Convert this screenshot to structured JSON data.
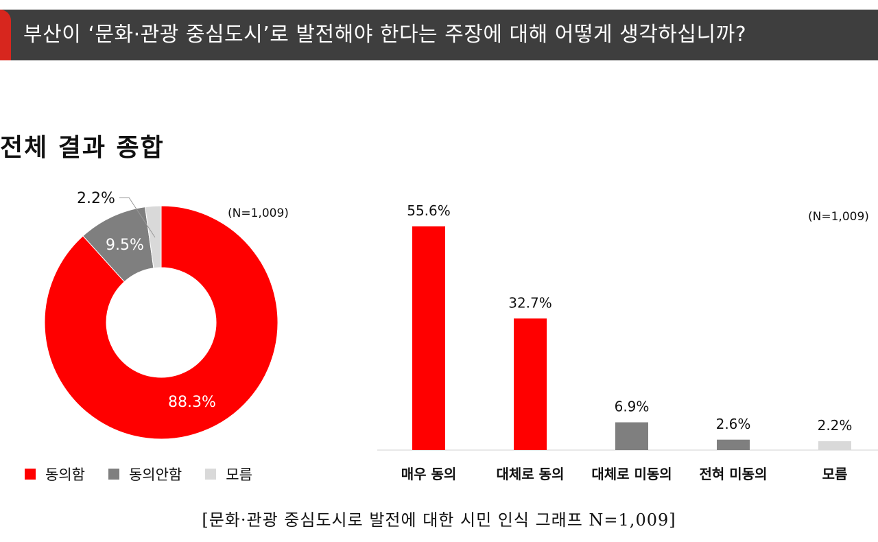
{
  "header": {
    "title": "부산이 ‘문화·관광 중심도시’로 발전해야 한다는 주장에 대해 어떻게 생각하십니까?"
  },
  "section_title": "전체 결과 종합",
  "caption": "[문화·관광 중심도시로 발전에 대한 시민 인식 그래프 N=1,009]",
  "colors": {
    "red": "#ff0000",
    "gray": "#7f7f7f",
    "lightgray": "#d9d9d9",
    "header_bg": "#3e3e3e",
    "accent": "#d7261e"
  },
  "chart_data": [
    {
      "type": "pie",
      "n_label": "(N=1,009)",
      "categories": [
        "동의함",
        "동의안함",
        "모름"
      ],
      "values": [
        88.3,
        9.5,
        2.2
      ],
      "labels": [
        "88.3%",
        "9.5%",
        "2.2%"
      ],
      "colors": [
        "#ff0000",
        "#7f7f7f",
        "#d9d9d9"
      ],
      "legend_position": "bottom"
    },
    {
      "type": "bar",
      "n_label": "(N=1,009)",
      "categories": [
        "매우 동의",
        "대체로 동의",
        "대체로 미동의",
        "전혀 미동의",
        "모름"
      ],
      "values": [
        55.6,
        32.7,
        6.9,
        2.6,
        2.2
      ],
      "labels": [
        "55.6%",
        "32.7%",
        "6.9%",
        "2.6%",
        "2.2%"
      ],
      "colors": [
        "#ff0000",
        "#ff0000",
        "#7f7f7f",
        "#7f7f7f",
        "#d9d9d9"
      ],
      "ylim": [
        0,
        60
      ]
    }
  ]
}
